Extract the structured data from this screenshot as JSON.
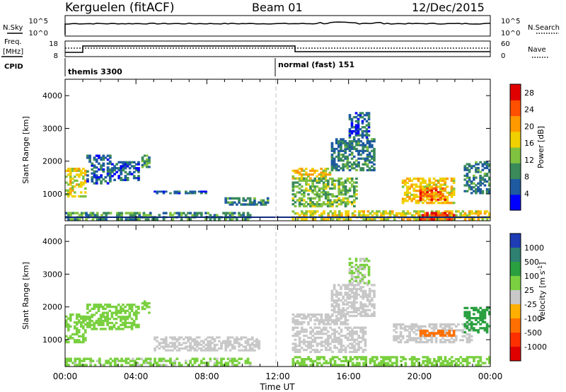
{
  "header": {
    "station": "Kerguelen (fitACF)",
    "beam": "Beam 01",
    "date": "12/Dec/2015"
  },
  "left_labels": {
    "nsky": "N.Sky",
    "freq_line1": "Freq.",
    "freq_line2": "[MHz]",
    "cpid": "CPID"
  },
  "right_labels": {
    "nsearch": "N.Search",
    "nave": "Nave"
  },
  "ticks": {
    "nsky_top": "10^5",
    "nsky_bottom": "10^0",
    "freq_top": "18",
    "freq_bottom": "8",
    "nave_top": "60",
    "nave_bottom": "0"
  },
  "cpid": {
    "mode1": "themis 3300",
    "mode2": "normal (fast) 151"
  },
  "xaxis": {
    "ticks": [
      "00:00",
      "04:00",
      "08:00",
      "12:00",
      "16:00",
      "20:00",
      "00:00"
    ],
    "label": "Time UT"
  },
  "colors": {
    "power_scale": [
      "#0000ff",
      "#1e5aa0",
      "#3a8a5a",
      "#7fc240",
      "#f0d000",
      "#ff9a00",
      "#ff5000",
      "#e00000"
    ],
    "velocity_scale": [
      "#1e3cb4",
      "#2e8070",
      "#2aa040",
      "#7ad040",
      "#c8c8c8",
      "#ffb000",
      "#ff7000",
      "#ff3000",
      "#e00000"
    ]
  },
  "chart_data": [
    {
      "type": "heatmap",
      "name": "power",
      "ylabel": "Slant Range [km]",
      "yticks": [
        "1000",
        "2000",
        "3000",
        "4000"
      ],
      "ylim": [
        180,
        4500
      ],
      "xlim": [
        0,
        24
      ],
      "colorbar_label": "Power [dB]",
      "colorbar_ticks": [
        "4",
        "8",
        "12",
        "16",
        "20",
        "24",
        "28"
      ],
      "colorbar_range": [
        0,
        30
      ],
      "echo_regions": [
        {
          "t": [
            0.0,
            1.2
          ],
          "r": [
            900,
            1800
          ],
          "v": 16
        },
        {
          "t": [
            1.2,
            2.6
          ],
          "r": [
            1300,
            2200
          ],
          "v": 6
        },
        {
          "t": [
            2.6,
            4.2
          ],
          "r": [
            1400,
            2000
          ],
          "v": 6
        },
        {
          "t": [
            4.3,
            4.8
          ],
          "r": [
            1800,
            2200
          ],
          "v": 10
        },
        {
          "t": [
            0.0,
            10.5
          ],
          "r": [
            200,
            450
          ],
          "v": 10
        },
        {
          "t": [
            5.0,
            8.0
          ],
          "r": [
            1000,
            1100
          ],
          "v": 6
        },
        {
          "t": [
            9.0,
            11.5
          ],
          "r": [
            650,
            900
          ],
          "v": 8
        },
        {
          "t": [
            12.8,
            15.0
          ],
          "r": [
            1450,
            1800
          ],
          "v": 18
        },
        {
          "t": [
            12.8,
            16.5
          ],
          "r": [
            600,
            1500
          ],
          "v": 12
        },
        {
          "t": [
            15.0,
            17.5
          ],
          "r": [
            1700,
            2700
          ],
          "v": 8
        },
        {
          "t": [
            16.0,
            17.2
          ],
          "r": [
            2700,
            3500
          ],
          "v": 6
        },
        {
          "t": [
            12.8,
            24.0
          ],
          "r": [
            200,
            500
          ],
          "v": 16
        },
        {
          "t": [
            19.0,
            22.0
          ],
          "r": [
            700,
            1500
          ],
          "v": 18
        },
        {
          "t": [
            20.0,
            21.5
          ],
          "r": [
            800,
            1200
          ],
          "v": 24
        },
        {
          "t": [
            20.0,
            22.0
          ],
          "r": [
            200,
            450
          ],
          "v": 26
        },
        {
          "t": [
            22.5,
            24.0
          ],
          "r": [
            1000,
            2000
          ],
          "v": 8
        }
      ]
    },
    {
      "type": "heatmap",
      "name": "velocity",
      "ylabel": "Slant Range [km]",
      "yticks": [
        "1000",
        "2000",
        "3000",
        "4000"
      ],
      "ylim": [
        180,
        4500
      ],
      "xlim": [
        0,
        24
      ],
      "colorbar_label": "Velocity [m s",
      "colorbar_label_sup": "-1",
      "colorbar_ticks": [
        "1000",
        "500",
        "100",
        "25",
        "-25",
        "-100",
        "-500",
        "-1000"
      ],
      "echo_regions": [
        {
          "t": [
            0.0,
            1.2
          ],
          "r": [
            900,
            1800
          ],
          "v": 60
        },
        {
          "t": [
            1.2,
            4.2
          ],
          "r": [
            1300,
            2100
          ],
          "v": 80
        },
        {
          "t": [
            4.3,
            4.8
          ],
          "r": [
            1800,
            2200
          ],
          "v": 60
        },
        {
          "t": [
            0.0,
            10.5
          ],
          "r": [
            200,
            450
          ],
          "v": 40
        },
        {
          "t": [
            5.0,
            11.0
          ],
          "r": [
            650,
            1100
          ],
          "v": 0
        },
        {
          "t": [
            12.8,
            16.0
          ],
          "r": [
            1450,
            1800
          ],
          "v": 0
        },
        {
          "t": [
            12.8,
            17.0
          ],
          "r": [
            600,
            1400
          ],
          "v": 0
        },
        {
          "t": [
            15.0,
            17.5
          ],
          "r": [
            1700,
            2700
          ],
          "v": 0
        },
        {
          "t": [
            16.0,
            17.2
          ],
          "r": [
            2700,
            3500
          ],
          "v": 30
        },
        {
          "t": [
            12.8,
            24.0
          ],
          "r": [
            200,
            500
          ],
          "v": 80
        },
        {
          "t": [
            18.5,
            23.0
          ],
          "r": [
            900,
            1500
          ],
          "v": 0
        },
        {
          "t": [
            20.0,
            22.0
          ],
          "r": [
            1100,
            1300
          ],
          "v": -150
        },
        {
          "t": [
            22.5,
            24.0
          ],
          "r": [
            1200,
            2000
          ],
          "v": 300
        }
      ]
    }
  ]
}
